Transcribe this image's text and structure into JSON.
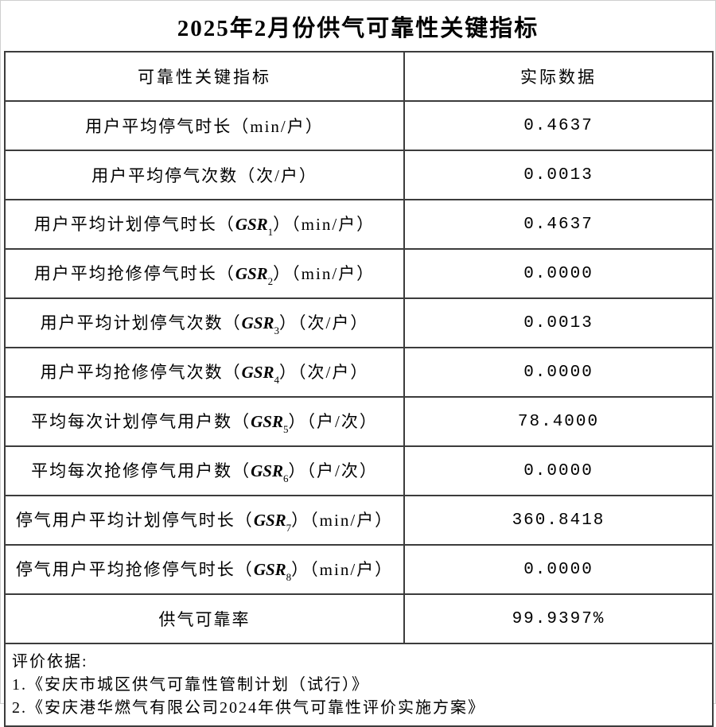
{
  "page": {
    "title": "2025年2月份供气可靠性关键指标"
  },
  "colors": {
    "text": "#000000",
    "grid_line": "#3c3c3c",
    "page_border": "#cfcfcf",
    "background": "#ffffff"
  },
  "table": {
    "columns": [
      "可靠性关键指标",
      "实际数据"
    ],
    "rows": [
      {
        "pre": "用户平均停气时长（min/户）",
        "gsr": "",
        "sub": "",
        "post": "",
        "value": "0.4637"
      },
      {
        "pre": "用户平均停气次数（次/户）",
        "gsr": "",
        "sub": "",
        "post": "",
        "value": "0.0013"
      },
      {
        "pre": "用户平均计划停气时长（",
        "gsr": "GSR",
        "sub": "1",
        "post": "）（min/户）",
        "value": "0.4637"
      },
      {
        "pre": "用户平均抢修停气时长（",
        "gsr": "GSR",
        "sub": "2",
        "post": "）（min/户）",
        "value": "0.0000"
      },
      {
        "pre": "用户平均计划停气次数（",
        "gsr": "GSR",
        "sub": "3",
        "post": "）（次/户）",
        "value": "0.0013"
      },
      {
        "pre": "用户平均抢修停气次数（",
        "gsr": "GSR",
        "sub": "4",
        "post": "）（次/户）",
        "value": "0.0000"
      },
      {
        "pre": "平均每次计划停气用户数（",
        "gsr": "GSR",
        "sub": "5",
        "post": "）（户/次）",
        "value": "78.4000"
      },
      {
        "pre": "平均每次抢修停气用户数（",
        "gsr": "GSR",
        "sub": "6",
        "post": "）（户/次）",
        "value": "0.0000"
      },
      {
        "pre": "停气用户平均计划停气时长（",
        "gsr": "GSR",
        "sub": "7",
        "post": "）（min/户）",
        "value": "360.8418"
      },
      {
        "pre": "停气用户平均抢修停气时长（",
        "gsr": "GSR",
        "sub": "8",
        "post": "）（min/户）",
        "value": "0.0000"
      },
      {
        "pre": "供气可靠率",
        "gsr": "",
        "sub": "",
        "post": "",
        "value": "99.9397%"
      }
    ],
    "footer": {
      "lines": [
        "评价依据:",
        "1.《安庆市城区供气可靠性管制计划（试行）》",
        "2.《安庆港华燃气有限公司2024年供气可靠性评价实施方案》"
      ]
    }
  }
}
